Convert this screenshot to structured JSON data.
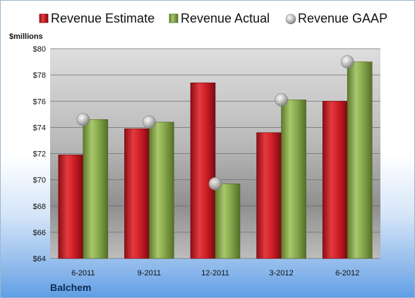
{
  "chart_data": {
    "type": "bar",
    "company": "Balchem",
    "ylabel": "$millions",
    "ylim": [
      64,
      80
    ],
    "yticks": [
      "$64",
      "$66",
      "$68",
      "$70",
      "$72",
      "$74",
      "$76",
      "$78",
      "$80"
    ],
    "categories": [
      "6-2011",
      "9-2011",
      "12-2011",
      "3-2012",
      "6-2012"
    ],
    "legend_position": "top",
    "grid": true,
    "series": [
      {
        "name": "Revenue Estimate",
        "type": "bar",
        "color": "#d0202a",
        "values": [
          71.9,
          73.9,
          77.4,
          73.6,
          76.0
        ]
      },
      {
        "name": "Revenue Actual",
        "type": "bar",
        "color": "#8aab4f",
        "values": [
          74.6,
          74.4,
          69.7,
          76.1,
          79.0
        ]
      },
      {
        "name": "Revenue GAAP",
        "type": "marker",
        "color": "#b8b8b8",
        "values": [
          74.6,
          74.4,
          69.7,
          76.1,
          79.0
        ]
      }
    ]
  }
}
